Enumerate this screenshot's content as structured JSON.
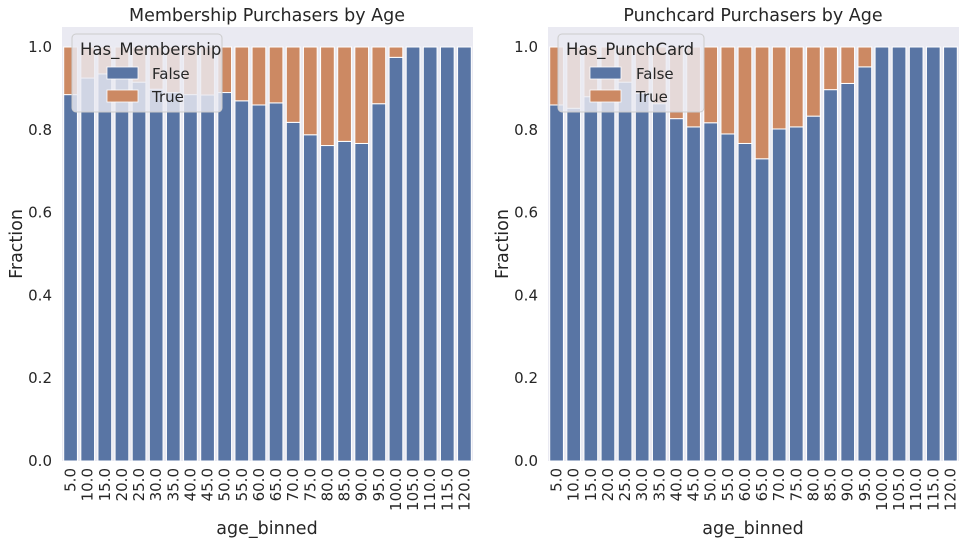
{
  "charts": [
    {
      "title": "Membership Purchasers by Age",
      "legend_title": "Has_Membership"
    },
    {
      "title": "Punchcard Purchasers by Age",
      "legend_title": "Has_PunchCard"
    }
  ],
  "chart_data": [
    {
      "type": "bar",
      "stacked": true,
      "title": "Membership Purchasers by Age",
      "xlabel": "age_binned",
      "ylabel": "Fraction",
      "ylim": [
        0,
        1.0
      ],
      "yticks": [
        "0.0",
        "0.2",
        "0.4",
        "0.6",
        "0.8",
        "1.0"
      ],
      "categories": [
        "5.0",
        "10.0",
        "15.0",
        "20.0",
        "25.0",
        "30.0",
        "35.0",
        "40.0",
        "45.0",
        "50.0",
        "55.0",
        "60.0",
        "65.0",
        "70.0",
        "75.0",
        "80.0",
        "85.0",
        "90.0",
        "95.0",
        "100.0",
        "105.0",
        "110.0",
        "115.0",
        "120.0"
      ],
      "legend": {
        "title": "Has_Membership",
        "placement": "upper-left"
      },
      "series": [
        {
          "name": "False",
          "color": "#5975a4",
          "values": [
            0.885,
            0.925,
            0.935,
            0.925,
            0.915,
            0.898,
            0.89,
            0.885,
            0.884,
            0.89,
            0.87,
            0.86,
            0.865,
            0.818,
            0.788,
            0.762,
            0.772,
            0.767,
            0.863,
            0.975,
            1.0,
            1.0,
            1.0,
            1.0
          ]
        },
        {
          "name": "True",
          "color": "#cc8963",
          "values": [
            0.115,
            0.075,
            0.065,
            0.075,
            0.085,
            0.102,
            0.11,
            0.115,
            0.116,
            0.11,
            0.13,
            0.14,
            0.135,
            0.182,
            0.212,
            0.238,
            0.228,
            0.233,
            0.137,
            0.025,
            0.0,
            0.0,
            0.0,
            0.0
          ]
        }
      ],
      "grid": false
    },
    {
      "type": "bar",
      "stacked": true,
      "title": "Punchcard Purchasers by Age",
      "xlabel": "age_binned",
      "ylabel": "Fraction",
      "ylim": [
        0,
        1.0
      ],
      "yticks": [
        "0.0",
        "0.2",
        "0.4",
        "0.6",
        "0.8",
        "1.0"
      ],
      "categories": [
        "5.0",
        "10.0",
        "15.0",
        "20.0",
        "25.0",
        "30.0",
        "35.0",
        "40.0",
        "45.0",
        "50.0",
        "55.0",
        "60.0",
        "65.0",
        "70.0",
        "75.0",
        "80.0",
        "85.0",
        "90.0",
        "95.0",
        "100.0",
        "105.0",
        "110.0",
        "115.0",
        "120.0"
      ],
      "legend": {
        "title": "Has_PunchCard",
        "placement": "upper-left"
      },
      "series": [
        {
          "name": "False",
          "color": "#5975a4",
          "values": [
            0.86,
            0.852,
            0.88,
            0.87,
            0.915,
            0.888,
            0.863,
            0.827,
            0.807,
            0.817,
            0.79,
            0.767,
            0.73,
            0.802,
            0.807,
            0.833,
            0.897,
            0.912,
            0.952,
            1.0,
            1.0,
            1.0,
            1.0,
            1.0
          ]
        },
        {
          "name": "True",
          "color": "#cc8963",
          "values": [
            0.14,
            0.148,
            0.12,
            0.13,
            0.085,
            0.112,
            0.137,
            0.173,
            0.193,
            0.183,
            0.21,
            0.233,
            0.27,
            0.198,
            0.193,
            0.167,
            0.103,
            0.088,
            0.048,
            0.0,
            0.0,
            0.0,
            0.0,
            0.0
          ]
        }
      ],
      "grid": false
    }
  ]
}
